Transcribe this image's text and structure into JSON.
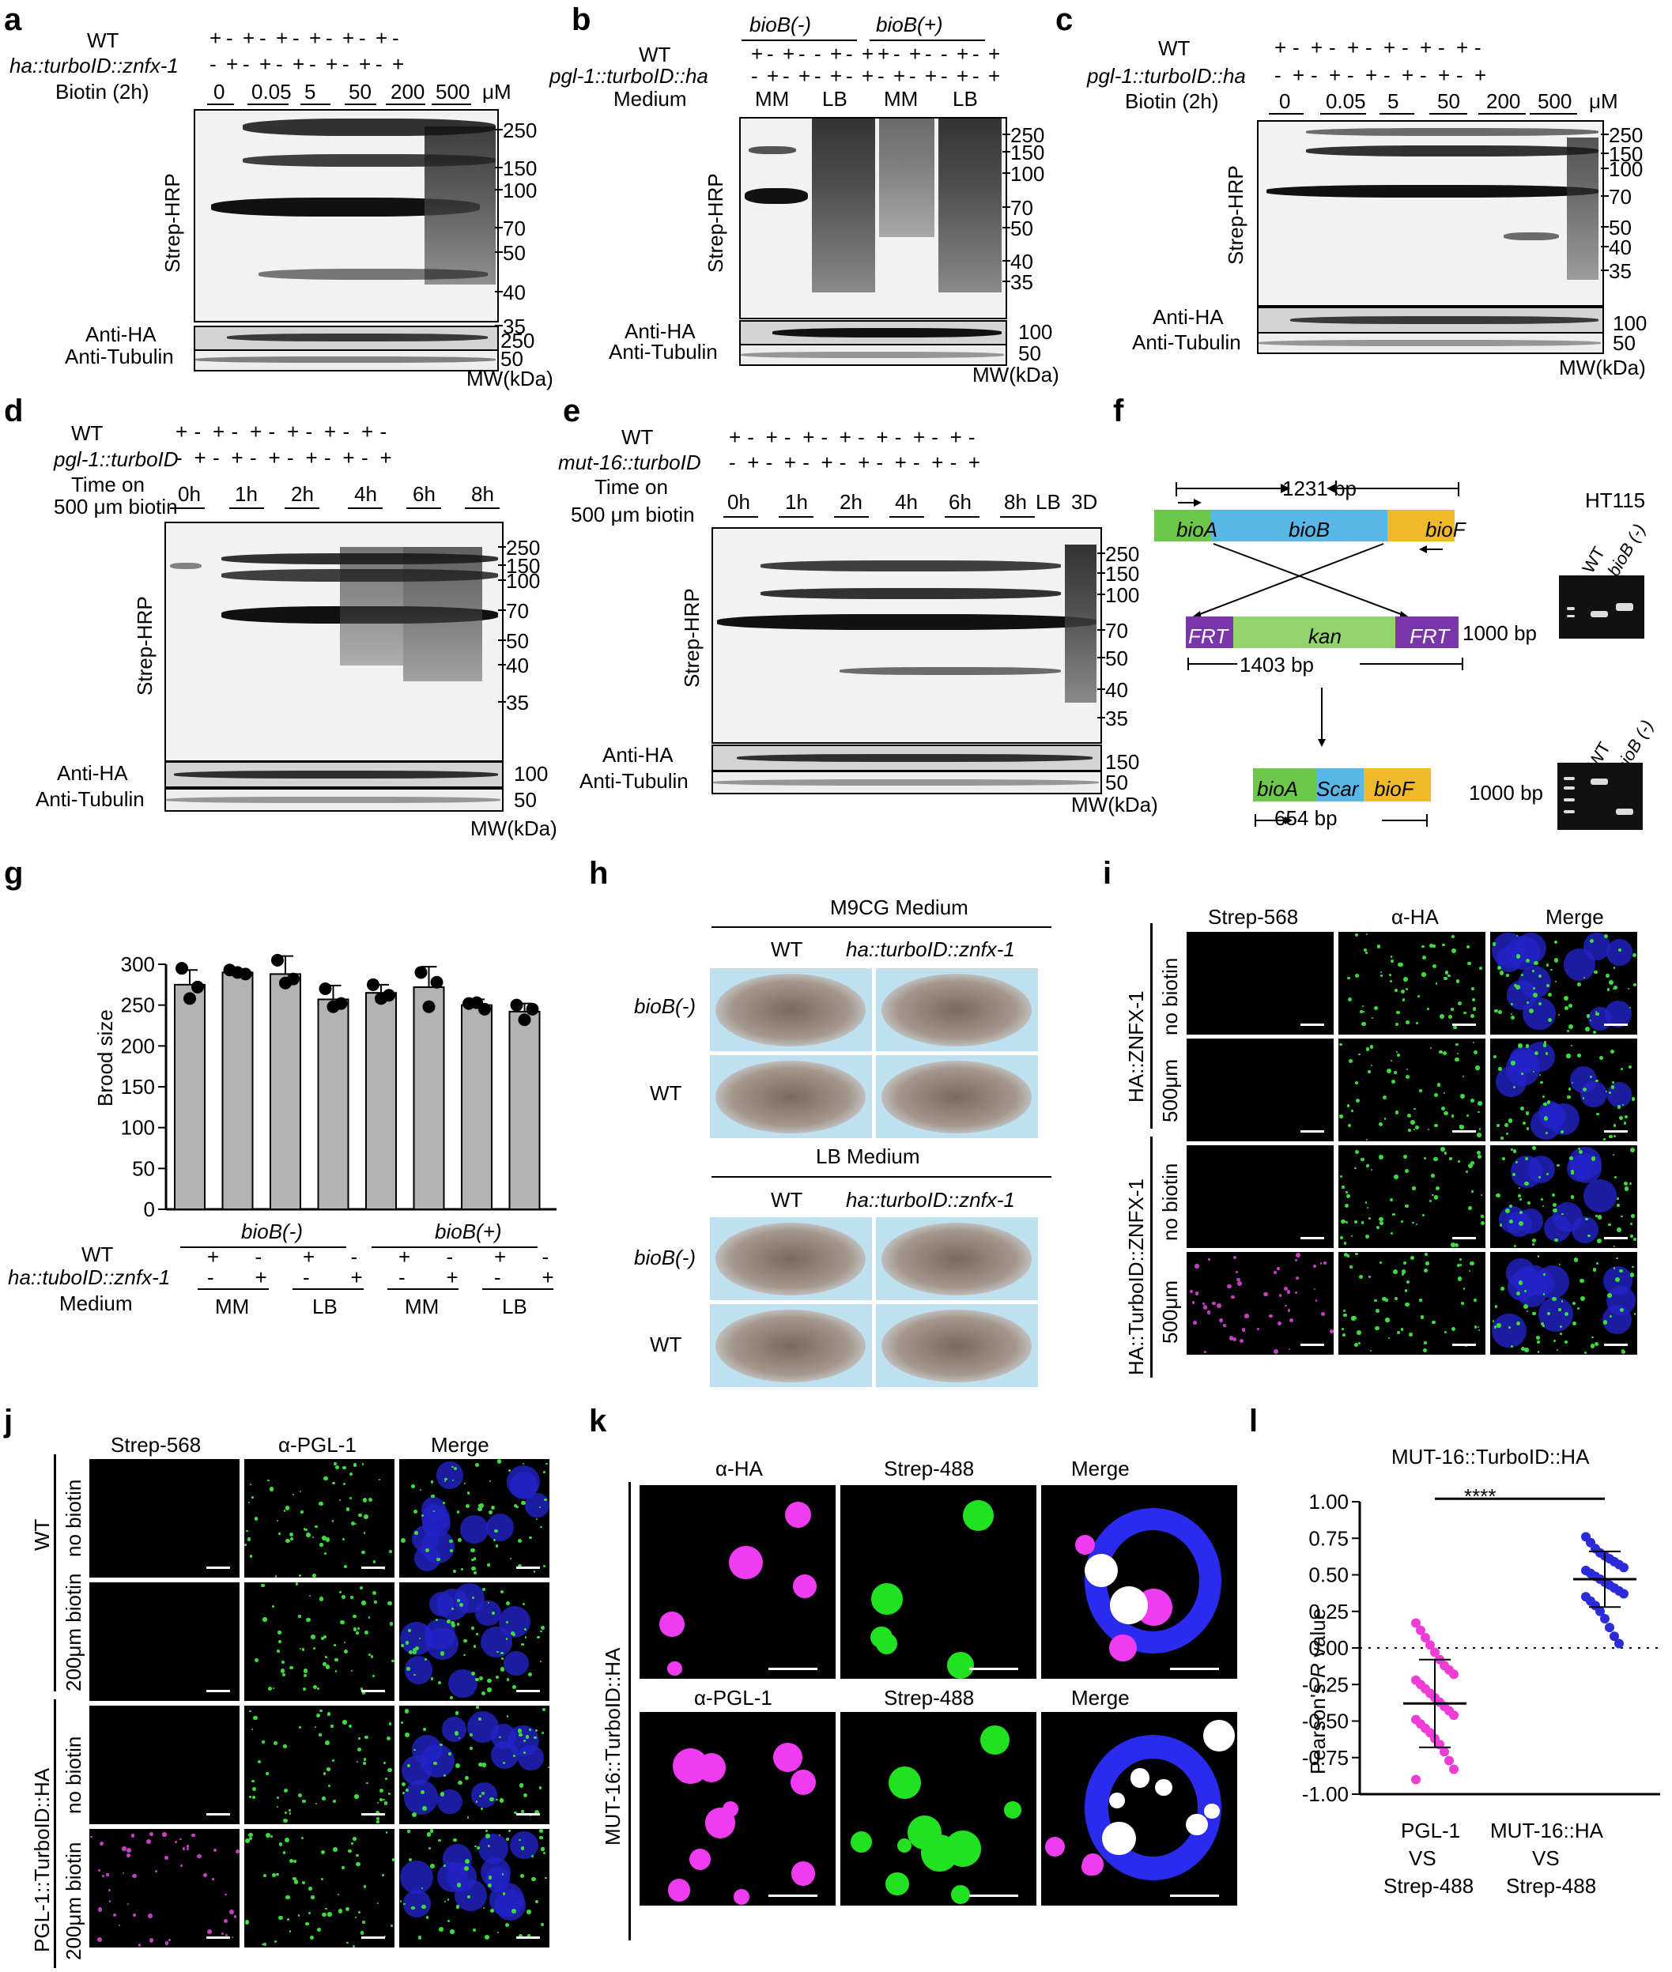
{
  "panel_letters": [
    "a",
    "b",
    "c",
    "d",
    "e",
    "f",
    "g",
    "h",
    "i",
    "j",
    "k",
    "l"
  ],
  "common": {
    "plus": "+",
    "minus": "-",
    "strep_hrp": "Strep-HRP",
    "anti_ha": "Anti-HA",
    "anti_tubulin": "Anti-Tubulin",
    "mw": "MW(kDa)",
    "uM": "μM"
  },
  "a": {
    "row1": "WT",
    "row2": "ha::turboID::znfx-1",
    "row3": "Biotin (2h)",
    "concs": [
      "0",
      "0.05",
      "5",
      "50",
      "200",
      "500"
    ],
    "markers": [
      "250",
      "150",
      "100",
      "70",
      "50",
      "40",
      "35"
    ],
    "ha_marker": "250",
    "tub_marker": "50"
  },
  "b": {
    "groups": [
      "bioB(-)",
      "bioB(+)"
    ],
    "row1": "WT",
    "row2": "pgl-1::turboID::ha",
    "row3": "Medium",
    "media": [
      "MM",
      "LB",
      "MM",
      "LB"
    ],
    "markers": [
      "250",
      "150",
      "100",
      "70",
      "50",
      "40",
      "35"
    ],
    "ha_marker": "100",
    "tub_marker": "50"
  },
  "c": {
    "row1": "WT",
    "row2": "pgl-1::turboID::ha",
    "row3": "Biotin (2h)",
    "concs": [
      "0",
      "0.05",
      "5",
      "50",
      "200",
      "500"
    ],
    "markers": [
      "250",
      "150",
      "100",
      "70",
      "50",
      "40",
      "35"
    ],
    "ha_marker": "100",
    "tub_marker": "50"
  },
  "d": {
    "row1": "WT",
    "row2": "pgl-1::turboID",
    "row3a": "Time on",
    "row3b": "500 μm biotin",
    "times": [
      "0h",
      "1h",
      "2h",
      "4h",
      "6h",
      "8h"
    ],
    "markers": [
      "250",
      "150",
      "100",
      "70",
      "50",
      "40",
      "35"
    ],
    "ha_marker": "100",
    "tub_marker": "50"
  },
  "e": {
    "row1": "WT",
    "row2": "mut-16::turboID",
    "row3a": "Time on",
    "row3b": "500 μm biotin",
    "times": [
      "0h",
      "1h",
      "2h",
      "4h",
      "6h",
      "8h",
      "LB",
      "3D"
    ],
    "markers": [
      "250",
      "150",
      "100",
      "70",
      "50",
      "40",
      "35"
    ],
    "ha_marker": "150",
    "tub_marker": "50"
  },
  "f": {
    "top_bp": "1231 bp",
    "genes_top": [
      "bioA",
      "bioB",
      "bioF"
    ],
    "cassette": [
      "FRT",
      "kan",
      "FRT"
    ],
    "mid_bp": "1403 bp",
    "genes_bottom": [
      "bioA",
      "Scar",
      "bioF"
    ],
    "bottom_bp": "654 bp",
    "strain": "HT115",
    "gel_lanes": [
      "WT",
      "bioB (-)"
    ],
    "ladder": "1000 bp"
  },
  "g": {
    "ylabel": "Brood size",
    "yticks": [
      "0",
      "50",
      "100",
      "150",
      "200",
      "250",
      "300"
    ],
    "groups": [
      "bioB(-)",
      "bioB(+)"
    ],
    "row1": "WT",
    "row2": "ha::tuboID::znfx-1",
    "row3": "Medium",
    "media": [
      "MM",
      "LB",
      "MM",
      "LB"
    ]
  },
  "h": {
    "medium1": "M9CG Medium",
    "medium2": "LB Medium",
    "col1": "WT",
    "col2": "ha::turboID::znfx-1",
    "row1": "bioB(-)",
    "row2": "WT"
  },
  "i": {
    "cols": [
      "Strep-568",
      "α-HA",
      "Merge"
    ],
    "strain1": "HA::ZNFX-1",
    "strain2": "HA::TurboID::ZNFX-1",
    "conds": [
      "no biotin",
      "500μm"
    ]
  },
  "j": {
    "cols": [
      "Strep-568",
      "α-PGL-1",
      "Merge"
    ],
    "strain1": "WT",
    "strain2": "PGL-1::TurboID::HA",
    "conds": [
      "no biotin",
      "200μm biotin"
    ]
  },
  "k": {
    "row1": [
      "α-HA",
      "Strep-488",
      "Merge"
    ],
    "row2": [
      "α-PGL-1",
      "Strep-488",
      "Merge"
    ],
    "strain": "MUT-16::TurboID::HA"
  },
  "l": {
    "title": "MUT-16::TurboID::HA",
    "significance": "****",
    "cat1": [
      "PGL-1",
      "VS",
      "Strep-488"
    ],
    "cat2": [
      "MUT-16::HA",
      "VS",
      "Strep-488"
    ]
  },
  "chart_data": [
    {
      "panel": "g",
      "type": "bar",
      "ylabel": "Brood size",
      "ylim": [
        0,
        300
      ],
      "categories": [
        "bioB(-) WT MM",
        "bioB(-) znfx-1 MM",
        "bioB(-) WT LB",
        "bioB(-) znfx-1 LB",
        "bioB(+) WT MM",
        "bioB(+) znfx-1 MM",
        "bioB(+) WT LB",
        "bioB(+) znfx-1 LB"
      ],
      "values": [
        275,
        290,
        288,
        257,
        265,
        272,
        250,
        242
      ],
      "errors": [
        18,
        4,
        22,
        17,
        10,
        25,
        7,
        10
      ],
      "points": [
        [
          295,
          258,
          272
        ],
        [
          293,
          290,
          288
        ],
        [
          305,
          277,
          282
        ],
        [
          270,
          248,
          252
        ],
        [
          275,
          258,
          262
        ],
        [
          290,
          248,
          278
        ],
        [
          252,
          253,
          245
        ],
        [
          250,
          232,
          245
        ]
      ],
      "color": "#b3b3b3"
    },
    {
      "panel": "l",
      "type": "scatter",
      "title": "MUT-16::TurboID::HA",
      "ylabel": "Pearson's R value",
      "ylim": [
        -1.0,
        1.0
      ],
      "categories": [
        "PGL-1 VS Strep-488",
        "MUT-16::HA VS Strep-488"
      ],
      "means": [
        -0.38,
        0.47
      ],
      "sd": [
        0.3,
        0.19
      ],
      "series": [
        {
          "values": [
            0.17,
            0.12,
            0.07,
            0.02,
            -0.03,
            -0.08,
            -0.12,
            -0.15,
            -0.18,
            -0.22,
            -0.25,
            -0.28,
            -0.31,
            -0.34,
            -0.37,
            -0.4,
            -0.43,
            -0.46,
            -0.49,
            -0.52,
            -0.55,
            -0.58,
            -0.62,
            -0.66,
            -0.71,
            -0.77,
            -0.83,
            -0.9
          ],
          "color": "#ee3cd6"
        },
        {
          "values": [
            0.76,
            0.72,
            0.68,
            0.65,
            0.63,
            0.61,
            0.59,
            0.57,
            0.55,
            0.53,
            0.51,
            0.49,
            0.47,
            0.45,
            0.43,
            0.41,
            0.39,
            0.37,
            0.35,
            0.32,
            0.29,
            0.25,
            0.2,
            0.14,
            0.08,
            0.03
          ],
          "color": "#2b2bd9"
        }
      ],
      "yticks": [
        "1.00",
        "0.75",
        "0.50",
        "0.25",
        "0.00",
        "-0.25",
        "-0.50",
        "-0.75",
        "-1.00"
      ]
    }
  ]
}
